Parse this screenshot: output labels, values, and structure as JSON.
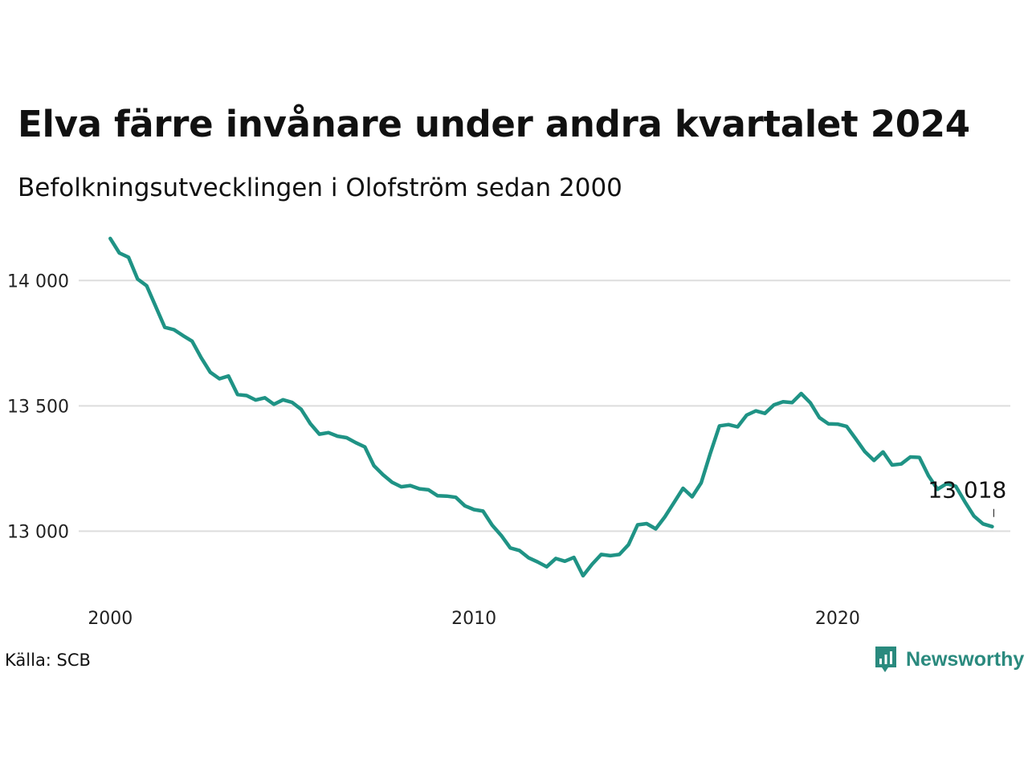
{
  "title": "Elva färre invånare under andra kvartalet 2024",
  "subtitle": "Befolkningsutvecklingen i Olofström sedan 2000",
  "source": "Källa: SCB",
  "brand": {
    "name": "Newsworthy",
    "color": "#2a8a7e"
  },
  "chart_data": {
    "type": "line",
    "title": "Elva färre invånare under andra kvartalet 2024",
    "subtitle": "Befolkningsutvecklingen i Olofström sedan 2000",
    "line_color": "#1f9385",
    "grid_color": "#dddddd",
    "grid": true,
    "y_ticks": [
      13000,
      13500,
      14000
    ],
    "y_tick_labels": [
      "13 000",
      "13 500",
      "14 000"
    ],
    "x_ticks": [
      2000,
      2010,
      2020
    ],
    "x_tick_labels": [
      "2000",
      "2010",
      "2020"
    ],
    "xlim": [
      1999.75,
      2024.75
    ],
    "ylim": [
      12780,
      14190
    ],
    "last_label": "13 018",
    "x_start": 2000.0,
    "x_step": 0.25,
    "values": [
      14168,
      14110,
      14093,
      14006,
      13979,
      13896,
      13813,
      13804,
      13780,
      13758,
      13692,
      13634,
      13608,
      13619,
      13545,
      13541,
      13523,
      13532,
      13506,
      13524,
      13514,
      13486,
      13429,
      13387,
      13393,
      13379,
      13373,
      13353,
      13336,
      13261,
      13225,
      13195,
      13177,
      13182,
      13169,
      13165,
      13141,
      13140,
      13135,
      13101,
      13086,
      13080,
      13024,
      12983,
      12933,
      12923,
      12894,
      12877,
      12858,
      12891,
      12880,
      12895,
      12822,
      12868,
      12907,
      12902,
      12907,
      12946,
      13025,
      13030,
      13009,
      13057,
      13114,
      13171,
      13137,
      13193,
      13310,
      13420,
      13425,
      13416,
      13463,
      13480,
      13470,
      13504,
      13516,
      13513,
      13549,
      13512,
      13453,
      13428,
      13427,
      13418,
      13368,
      13317,
      13282,
      13316,
      13264,
      13268,
      13296,
      13294,
      13221,
      13167,
      13190,
      13179,
      13117,
      13060,
      13029,
      13018
    ]
  }
}
